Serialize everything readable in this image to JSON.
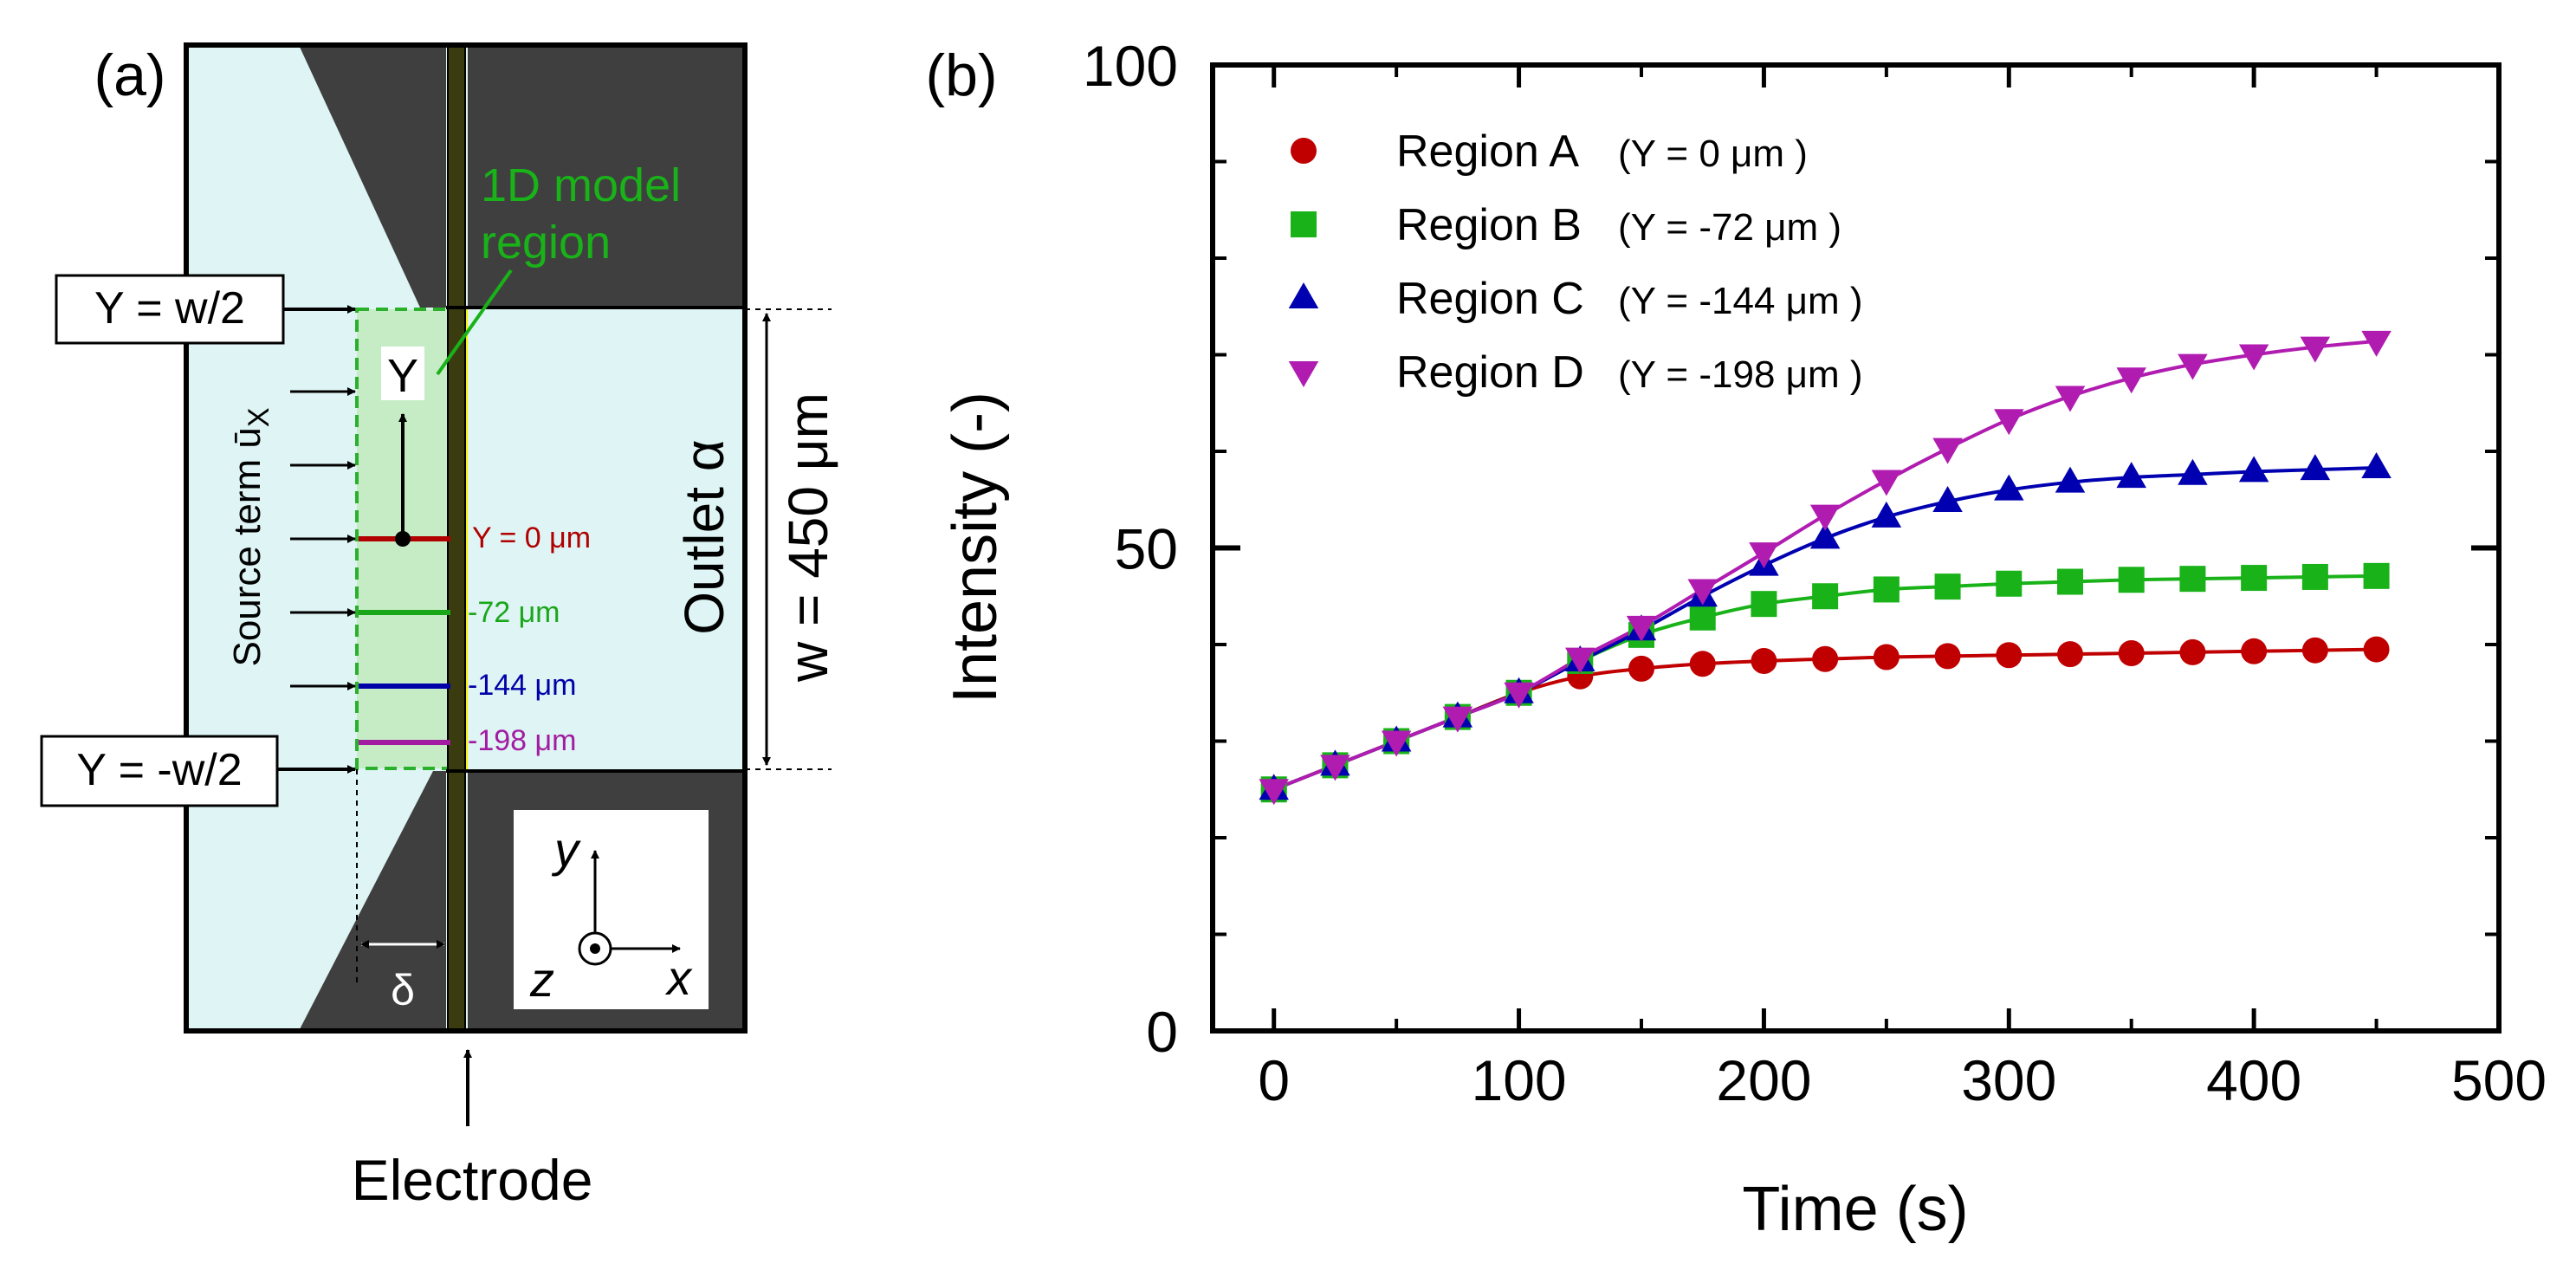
{
  "panel_a": {
    "label": "(a)",
    "model_label": [
      "1D model",
      "region"
    ],
    "y_top_label": "Y = w/2",
    "y_bottom_label": "Y = -w/2",
    "axis_letter": "Y",
    "source_term": "Source term ū",
    "source_sub": "X",
    "outlet_label": "Outlet α",
    "width_label": "w = 450 μm",
    "delta_label": "δ",
    "electrode_label": "Electrode",
    "coord_y": "y",
    "coord_x": "x",
    "coord_z": "z",
    "line_labels": [
      {
        "text": "Y = 0 μm",
        "color": "#b00000"
      },
      {
        "text": "-72 μm",
        "color": "#19a719"
      },
      {
        "text": "-144 μm",
        "color": "#0000a8"
      },
      {
        "text": "-198 μm",
        "color": "#a21ca2"
      }
    ],
    "colors": {
      "fluid": "#dff4f4",
      "wall": "#3f3f3f",
      "electrode": "#3b3b10",
      "electrode_glow": "#f4f400",
      "model_region": "#c6ecc6",
      "model_border": "#2ab02a"
    }
  },
  "panel_b": {
    "label": "(b)"
  },
  "chart_data": {
    "type": "scatter",
    "xlabel": "Time (s)",
    "ylabel": "Intensity (-)",
    "xlim": [
      -25,
      500
    ],
    "ylim": [
      0,
      100
    ],
    "xticks": [
      0,
      100,
      200,
      300,
      400,
      500
    ],
    "yticks": [
      0,
      50,
      100
    ],
    "legend_position": "top-left",
    "grid": false,
    "x": [
      0,
      25,
      50,
      75,
      100,
      125,
      150,
      175,
      200,
      225,
      250,
      275,
      300,
      325,
      350,
      375,
      400,
      425,
      450
    ],
    "series": [
      {
        "name": "Region A",
        "legend_suffix": "(Y = 0 μm )",
        "marker": "circle",
        "color": "#c00000",
        "values": [
          25.0,
          27.5,
          30.0,
          32.5,
          35.0,
          36.7,
          37.5,
          38.0,
          38.3,
          38.5,
          38.7,
          38.8,
          38.9,
          39.0,
          39.1,
          39.2,
          39.3,
          39.4,
          39.5
        ]
      },
      {
        "name": "Region B",
        "legend_suffix": "(Y = -72 μm )",
        "marker": "square",
        "color": "#19b219",
        "values": [
          25.0,
          27.5,
          30.0,
          32.5,
          35.0,
          38.3,
          41.0,
          42.8,
          44.2,
          45.0,
          45.7,
          46.0,
          46.3,
          46.5,
          46.7,
          46.8,
          46.9,
          47.0,
          47.1
        ]
      },
      {
        "name": "Region C",
        "legend_suffix": "(Y = -144 μm )",
        "marker": "triangle-up",
        "color": "#0000b0",
        "values": [
          25.0,
          27.5,
          30.0,
          32.5,
          35.0,
          38.3,
          41.5,
          45.0,
          48.2,
          51.0,
          53.2,
          54.8,
          56.0,
          56.8,
          57.3,
          57.6,
          57.9,
          58.1,
          58.3
        ]
      },
      {
        "name": "Region D",
        "legend_suffix": "(Y = -198 μm )",
        "marker": "triangle-down",
        "color": "#b01cb0",
        "values": [
          25.0,
          27.5,
          30.0,
          32.5,
          35.0,
          38.6,
          41.9,
          45.7,
          49.5,
          53.4,
          57.0,
          60.3,
          63.3,
          65.7,
          67.6,
          69.0,
          70.0,
          70.8,
          71.4
        ]
      }
    ]
  }
}
